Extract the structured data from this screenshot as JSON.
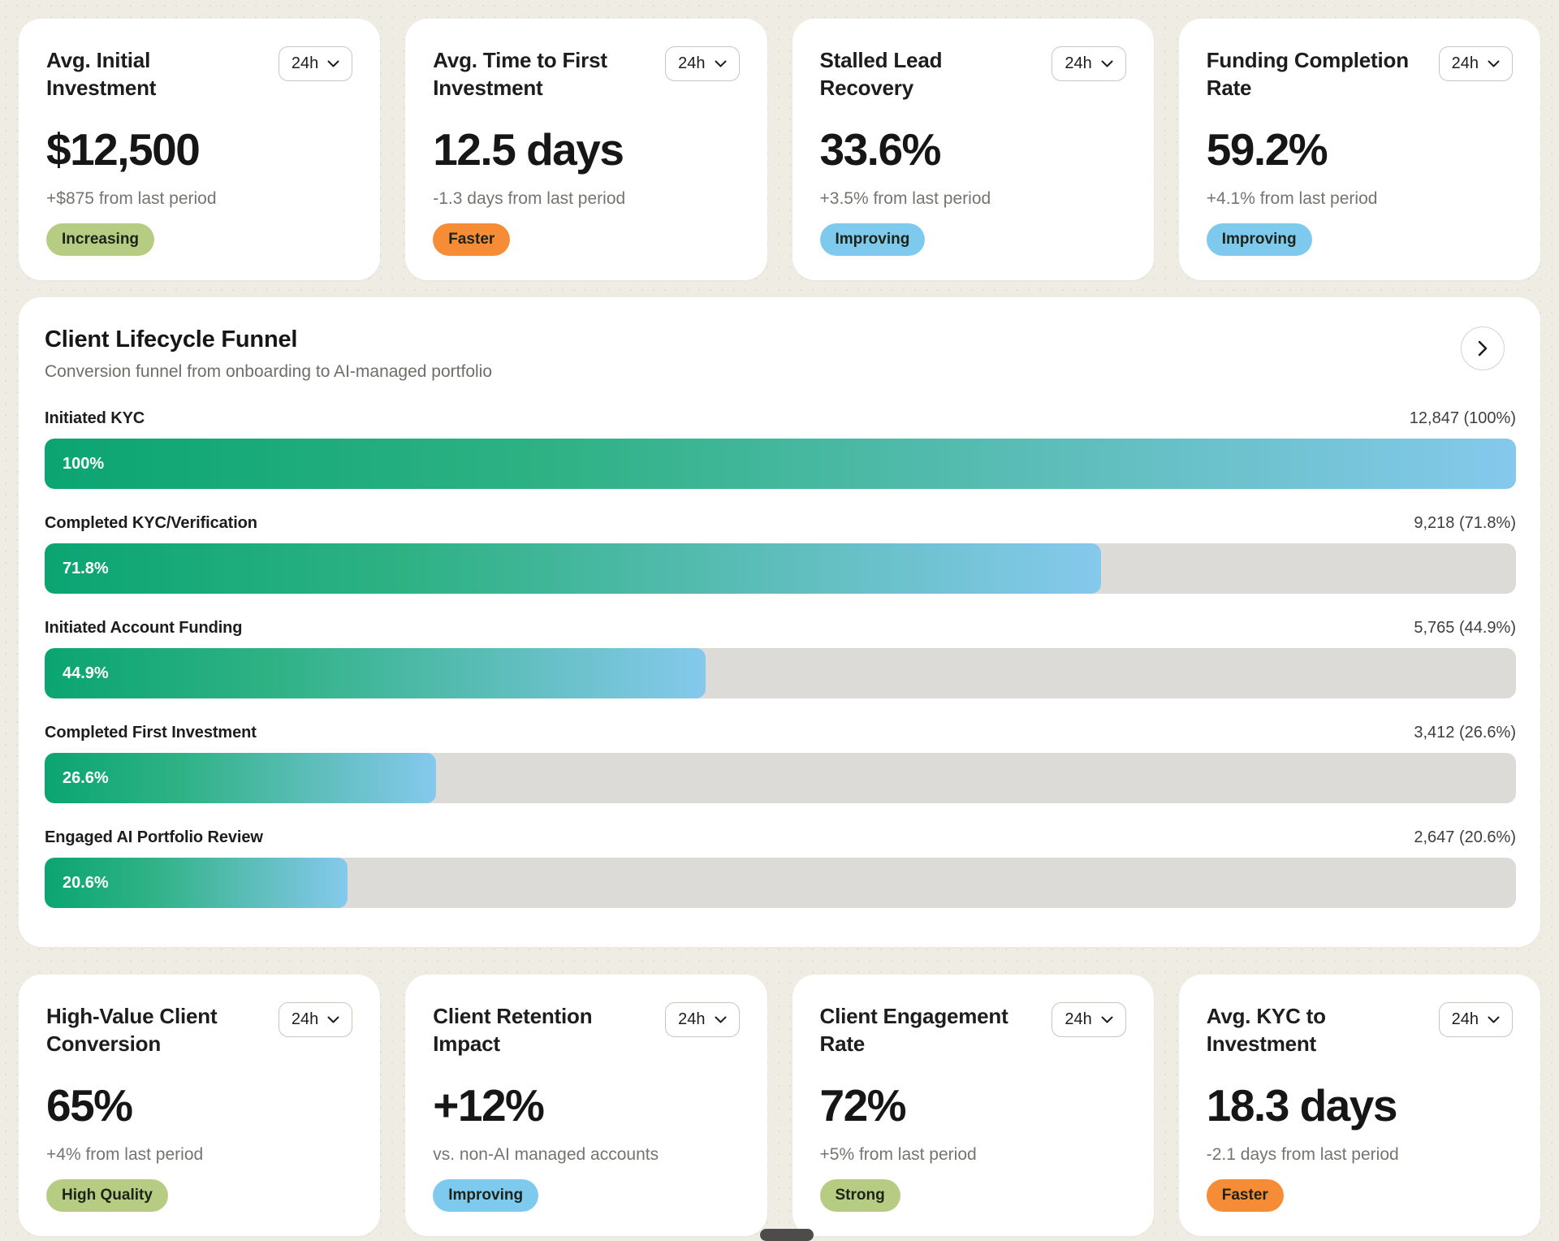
{
  "colors": {
    "page_background": "#efece4",
    "card_background": "#ffffff",
    "funnel_bar_gradient_start": "#0ba572",
    "funnel_bar_gradient_end": "#85c9ec",
    "funnel_track": "#dcdbd7",
    "badge_green": "#b7cc83",
    "badge_orange": "#f68d36",
    "badge_blue": "#7ecaee"
  },
  "kpi_top": [
    {
      "title": "Avg. Initial Investment",
      "range": "24h",
      "value": "$12,500",
      "delta": "+$875 from last period",
      "badge": "Increasing",
      "badge_color": "green"
    },
    {
      "title": "Avg. Time to First Investment",
      "range": "24h",
      "value": "12.5 days",
      "delta": "-1.3 days from last period",
      "badge": "Faster",
      "badge_color": "orange"
    },
    {
      "title": "Stalled Lead Recovery",
      "range": "24h",
      "value": "33.6%",
      "delta": "+3.5% from last period",
      "badge": "Improving",
      "badge_color": "blue"
    },
    {
      "title": "Funding Completion Rate",
      "range": "24h",
      "value": "59.2%",
      "delta": "+4.1% from last period",
      "badge": "Improving",
      "badge_color": "blue"
    }
  ],
  "funnel": {
    "title": "Client Lifecycle Funnel",
    "subtitle": "Conversion funnel from onboarding to AI-managed portfolio",
    "stages": [
      {
        "label": "Initiated KYC",
        "value_text": "12,847 (100%)",
        "percent": 100,
        "percent_label": "100%"
      },
      {
        "label": "Completed KYC/Verification",
        "value_text": "9,218 (71.8%)",
        "percent": 71.8,
        "percent_label": "71.8%"
      },
      {
        "label": "Initiated Account Funding",
        "value_text": "5,765 (44.9%)",
        "percent": 44.9,
        "percent_label": "44.9%"
      },
      {
        "label": "Completed First Investment",
        "value_text": "3,412 (26.6%)",
        "percent": 26.6,
        "percent_label": "26.6%"
      },
      {
        "label": "Engaged AI Portfolio Review",
        "value_text": "2,647 (20.6%)",
        "percent": 20.6,
        "percent_label": "20.6%"
      }
    ]
  },
  "kpi_bottom": [
    {
      "title": "High-Value Client Conversion",
      "range": "24h",
      "value": "65%",
      "delta": "+4% from last period",
      "badge": "High Quality",
      "badge_color": "green"
    },
    {
      "title": "Client Retention Impact",
      "range": "24h",
      "value": "+12%",
      "delta": "vs. non-AI managed accounts",
      "badge": "Improving",
      "badge_color": "blue"
    },
    {
      "title": "Client Engagement Rate",
      "range": "24h",
      "value": "72%",
      "delta": "+5% from last period",
      "badge": "Strong",
      "badge_color": "green"
    },
    {
      "title": "Avg. KYC to Investment",
      "range": "24h",
      "value": "18.3 days",
      "delta": "-2.1 days from last period",
      "badge": "Faster",
      "badge_color": "orange"
    }
  ],
  "chart_data": {
    "type": "bar",
    "orientation": "horizontal",
    "title": "Client Lifecycle Funnel",
    "subtitle": "Conversion funnel from onboarding to AI-managed portfolio",
    "categories": [
      "Initiated KYC",
      "Completed KYC/Verification",
      "Initiated Account Funding",
      "Completed First Investment",
      "Engaged AI Portfolio Review"
    ],
    "counts": [
      12847,
      9218,
      5765,
      3412,
      2647
    ],
    "values": [
      100,
      71.8,
      44.9,
      26.6,
      20.6
    ],
    "xlabel": "",
    "ylabel": "",
    "xlim": [
      0,
      100
    ],
    "grid": false,
    "legend": "none"
  }
}
